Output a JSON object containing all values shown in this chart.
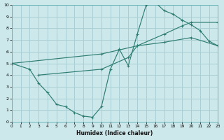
{
  "background_color": "#cde8eb",
  "grid_color": "#a8cfd4",
  "line_color": "#2d7d72",
  "xlim": [
    0,
    23
  ],
  "ylim": [
    0,
    10
  ],
  "xlabel": "Humidex (Indice chaleur)",
  "xticks": [
    0,
    1,
    2,
    3,
    4,
    5,
    6,
    7,
    8,
    9,
    10,
    11,
    12,
    13,
    14,
    15,
    16,
    17,
    18,
    19,
    20,
    21,
    22,
    23
  ],
  "yticks": [
    0,
    1,
    2,
    3,
    4,
    5,
    6,
    7,
    8,
    9,
    10
  ],
  "curve1": {
    "x": [
      0,
      2,
      3,
      4,
      5,
      6,
      7,
      8,
      9,
      10,
      11,
      12,
      13,
      14,
      15,
      16,
      17,
      18,
      19,
      20,
      21,
      22,
      23
    ],
    "y": [
      5.0,
      4.5,
      3.3,
      2.5,
      1.5,
      1.3,
      0.8,
      0.5,
      0.4,
      1.3,
      4.5,
      6.2,
      4.8,
      7.5,
      10.0,
      10.2,
      9.5,
      9.2,
      8.7,
      8.3,
      7.8,
      6.9,
      6.5
    ]
  },
  "curve2": {
    "x": [
      0,
      10,
      14,
      17,
      19,
      20,
      23
    ],
    "y": [
      5.0,
      5.8,
      6.5,
      7.5,
      8.2,
      8.5,
      8.5
    ]
  },
  "curve3": {
    "x": [
      3,
      10,
      13,
      14,
      17,
      20,
      23
    ],
    "y": [
      4.0,
      4.5,
      5.5,
      6.5,
      6.8,
      7.2,
      6.5
    ]
  }
}
